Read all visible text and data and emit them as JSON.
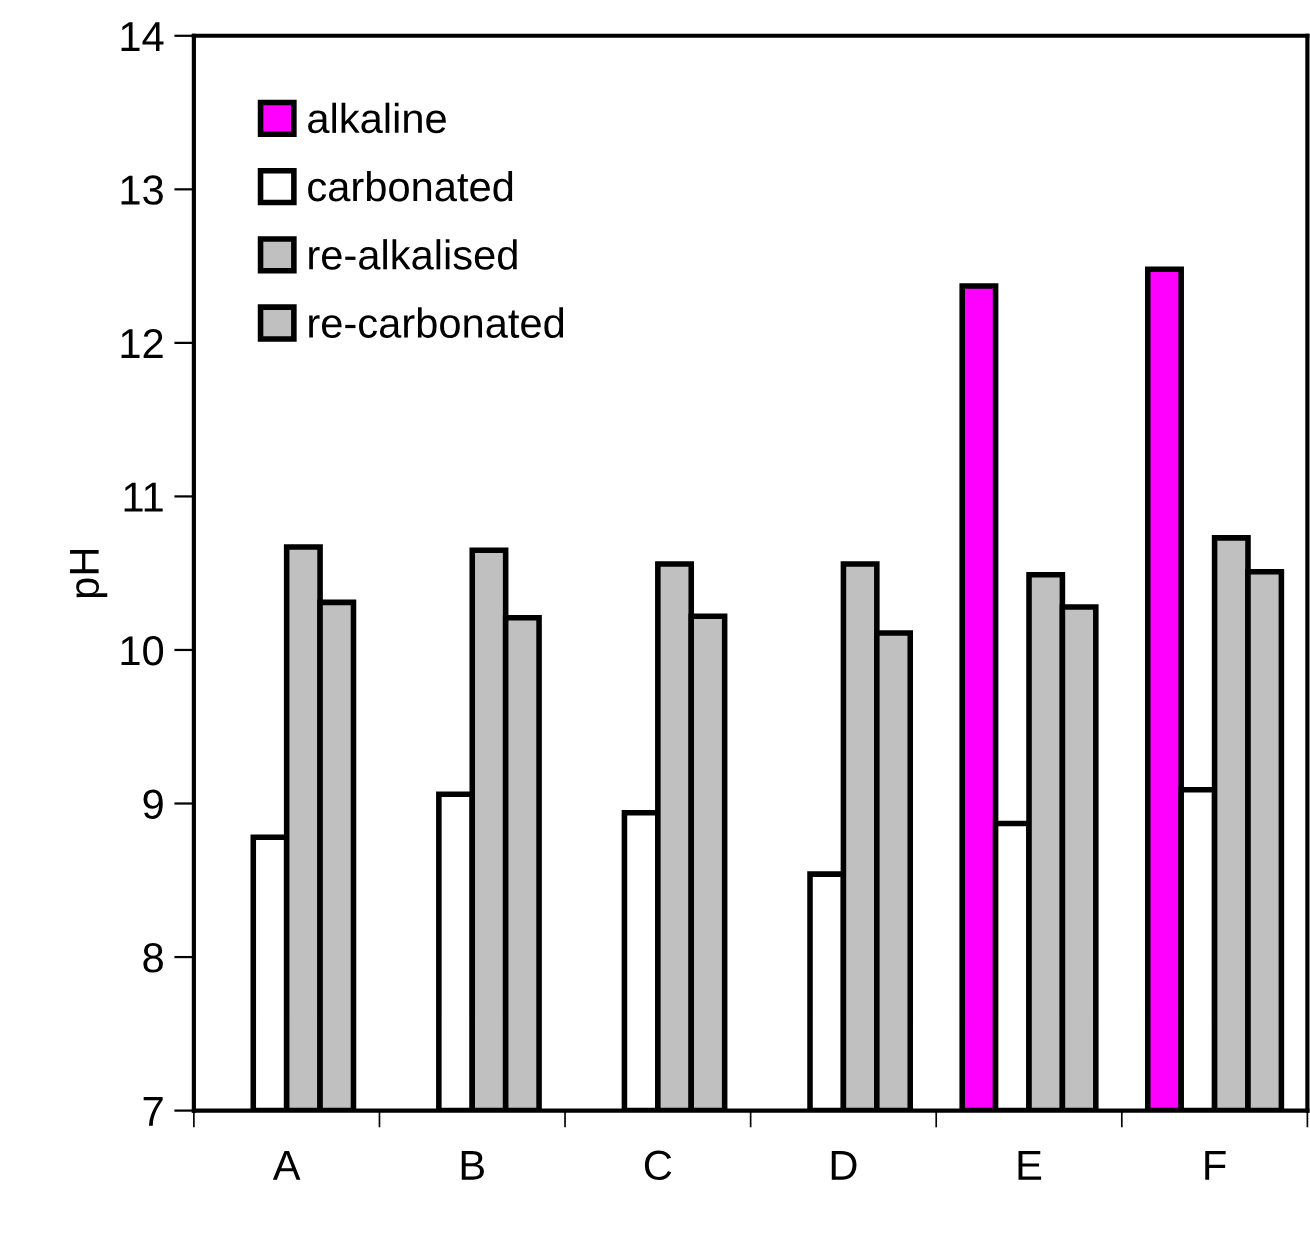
{
  "chart_data": {
    "type": "bar",
    "ylabel": "pH",
    "categories": [
      "A",
      "B",
      "C",
      "D",
      "E",
      "F"
    ],
    "series": [
      {
        "name": "alkaline",
        "color": "#ff00ff",
        "values": [
          null,
          null,
          null,
          null,
          12.37,
          12.48
        ]
      },
      {
        "name": "carbonated",
        "color": "#ffffff",
        "values": [
          8.78,
          9.06,
          8.94,
          8.54,
          8.87,
          9.09
        ]
      },
      {
        "name": "re-alkalised",
        "color": "#c0c0c0",
        "values": [
          10.67,
          10.65,
          10.56,
          10.56,
          10.49,
          10.73
        ]
      },
      {
        "name": "re-carbonated",
        "color": "#c0c0c0",
        "values": [
          10.31,
          10.21,
          10.22,
          10.11,
          10.28,
          10.51
        ]
      }
    ],
    "ylim": [
      7,
      14
    ],
    "yticks": [
      7,
      8,
      9,
      10,
      11,
      12,
      13,
      14
    ],
    "grid": false,
    "legend": "top left"
  }
}
